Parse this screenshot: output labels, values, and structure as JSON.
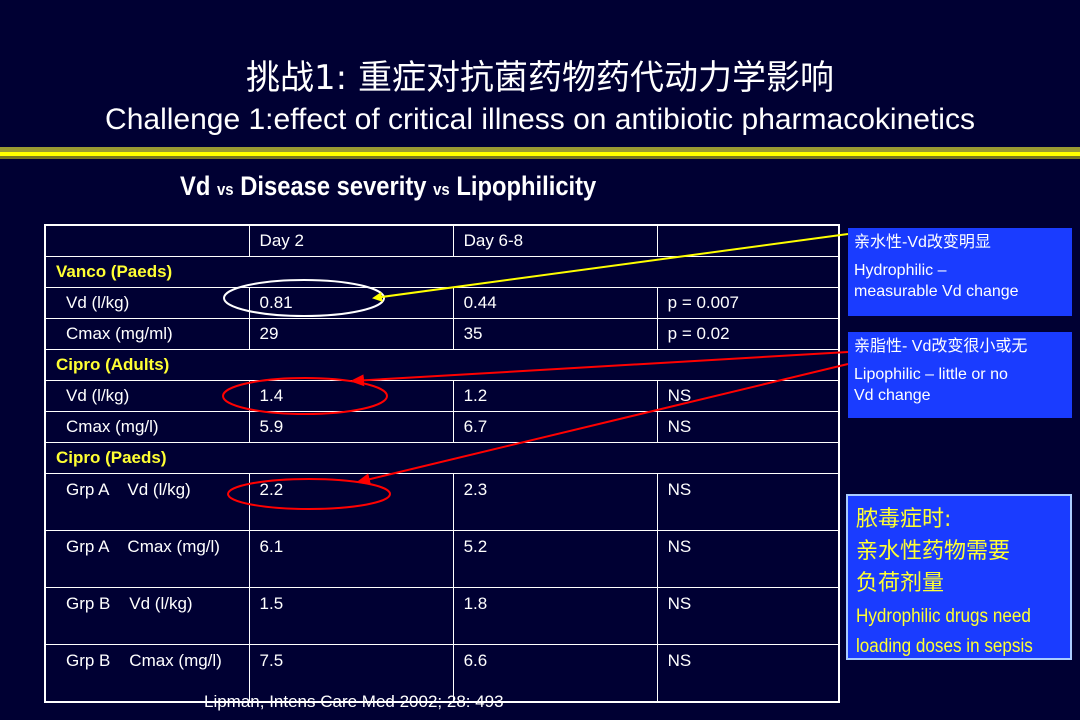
{
  "title_cn": "挑战1: 重症对抗菌药物药代动力学影响",
  "title_en": "Challenge 1:effect of critical illness on antibiotic pharmacokinetics",
  "subtitle": {
    "part1": "Vd ",
    "vs1": "vs",
    "part2": " Disease severity ",
    "vs2": "vs",
    "part3": " Lipophilicity"
  },
  "table": {
    "header": [
      "",
      "Day 2",
      "Day 6-8",
      ""
    ],
    "groups": [
      {
        "label": "Vanco (Paeds)"
      },
      {
        "label": "Cipro (Adults)"
      },
      {
        "label": "Cipro (Paeds)"
      }
    ],
    "rows": [
      [
        "Vd (l/kg)",
        "0.81",
        "0.44",
        "p = 0.007"
      ],
      [
        "Cmax (mg/ml)",
        "29",
        "35",
        "p = 0.02"
      ],
      [
        "Vd (l/kg)",
        "1.4",
        "1.2",
        "NS"
      ],
      [
        "Cmax (mg/l)",
        "5.9",
        "6.7",
        "NS"
      ],
      [
        "Grp A    Vd (l/kg)",
        "2.2",
        "2.3",
        "NS"
      ],
      [
        "Grp A    Cmax (mg/l)",
        "6.1",
        "5.2",
        "NS"
      ],
      [
        "Grp B    Vd (l/kg)",
        "1.5",
        "1.8",
        "NS"
      ],
      [
        "Grp B    Cmax (mg/l)",
        "7.5",
        "6.6",
        "NS"
      ]
    ]
  },
  "citation": "Lipman, Intens Care Med 2002; 28: 493",
  "notes": {
    "hydrophilic": {
      "cn": "亲水性-Vd改变明显",
      "en1": "Hydrophilic –",
      "en2": "measurable Vd change"
    },
    "lipophilic": {
      "cn": "亲脂性- Vd改变很小或无",
      "en1": "Lipophilic – little or no",
      "en2": "Vd change"
    },
    "sepsis": {
      "cn1": "脓毒症时:",
      "cn2": "亲水性药物需要",
      "cn3": "负荷剂量",
      "en1": "Hydrophilic drugs need",
      "en2": "loading doses in sepsis"
    }
  },
  "colors": {
    "background": "#000033",
    "group_label": "#ffff33",
    "note_bg": "#1a3cff",
    "arrow_yellow": "#ffff00",
    "arrow_red": "#ff0000",
    "ellipse_white": "#ffffff",
    "ellipse_red": "#ff0000"
  }
}
